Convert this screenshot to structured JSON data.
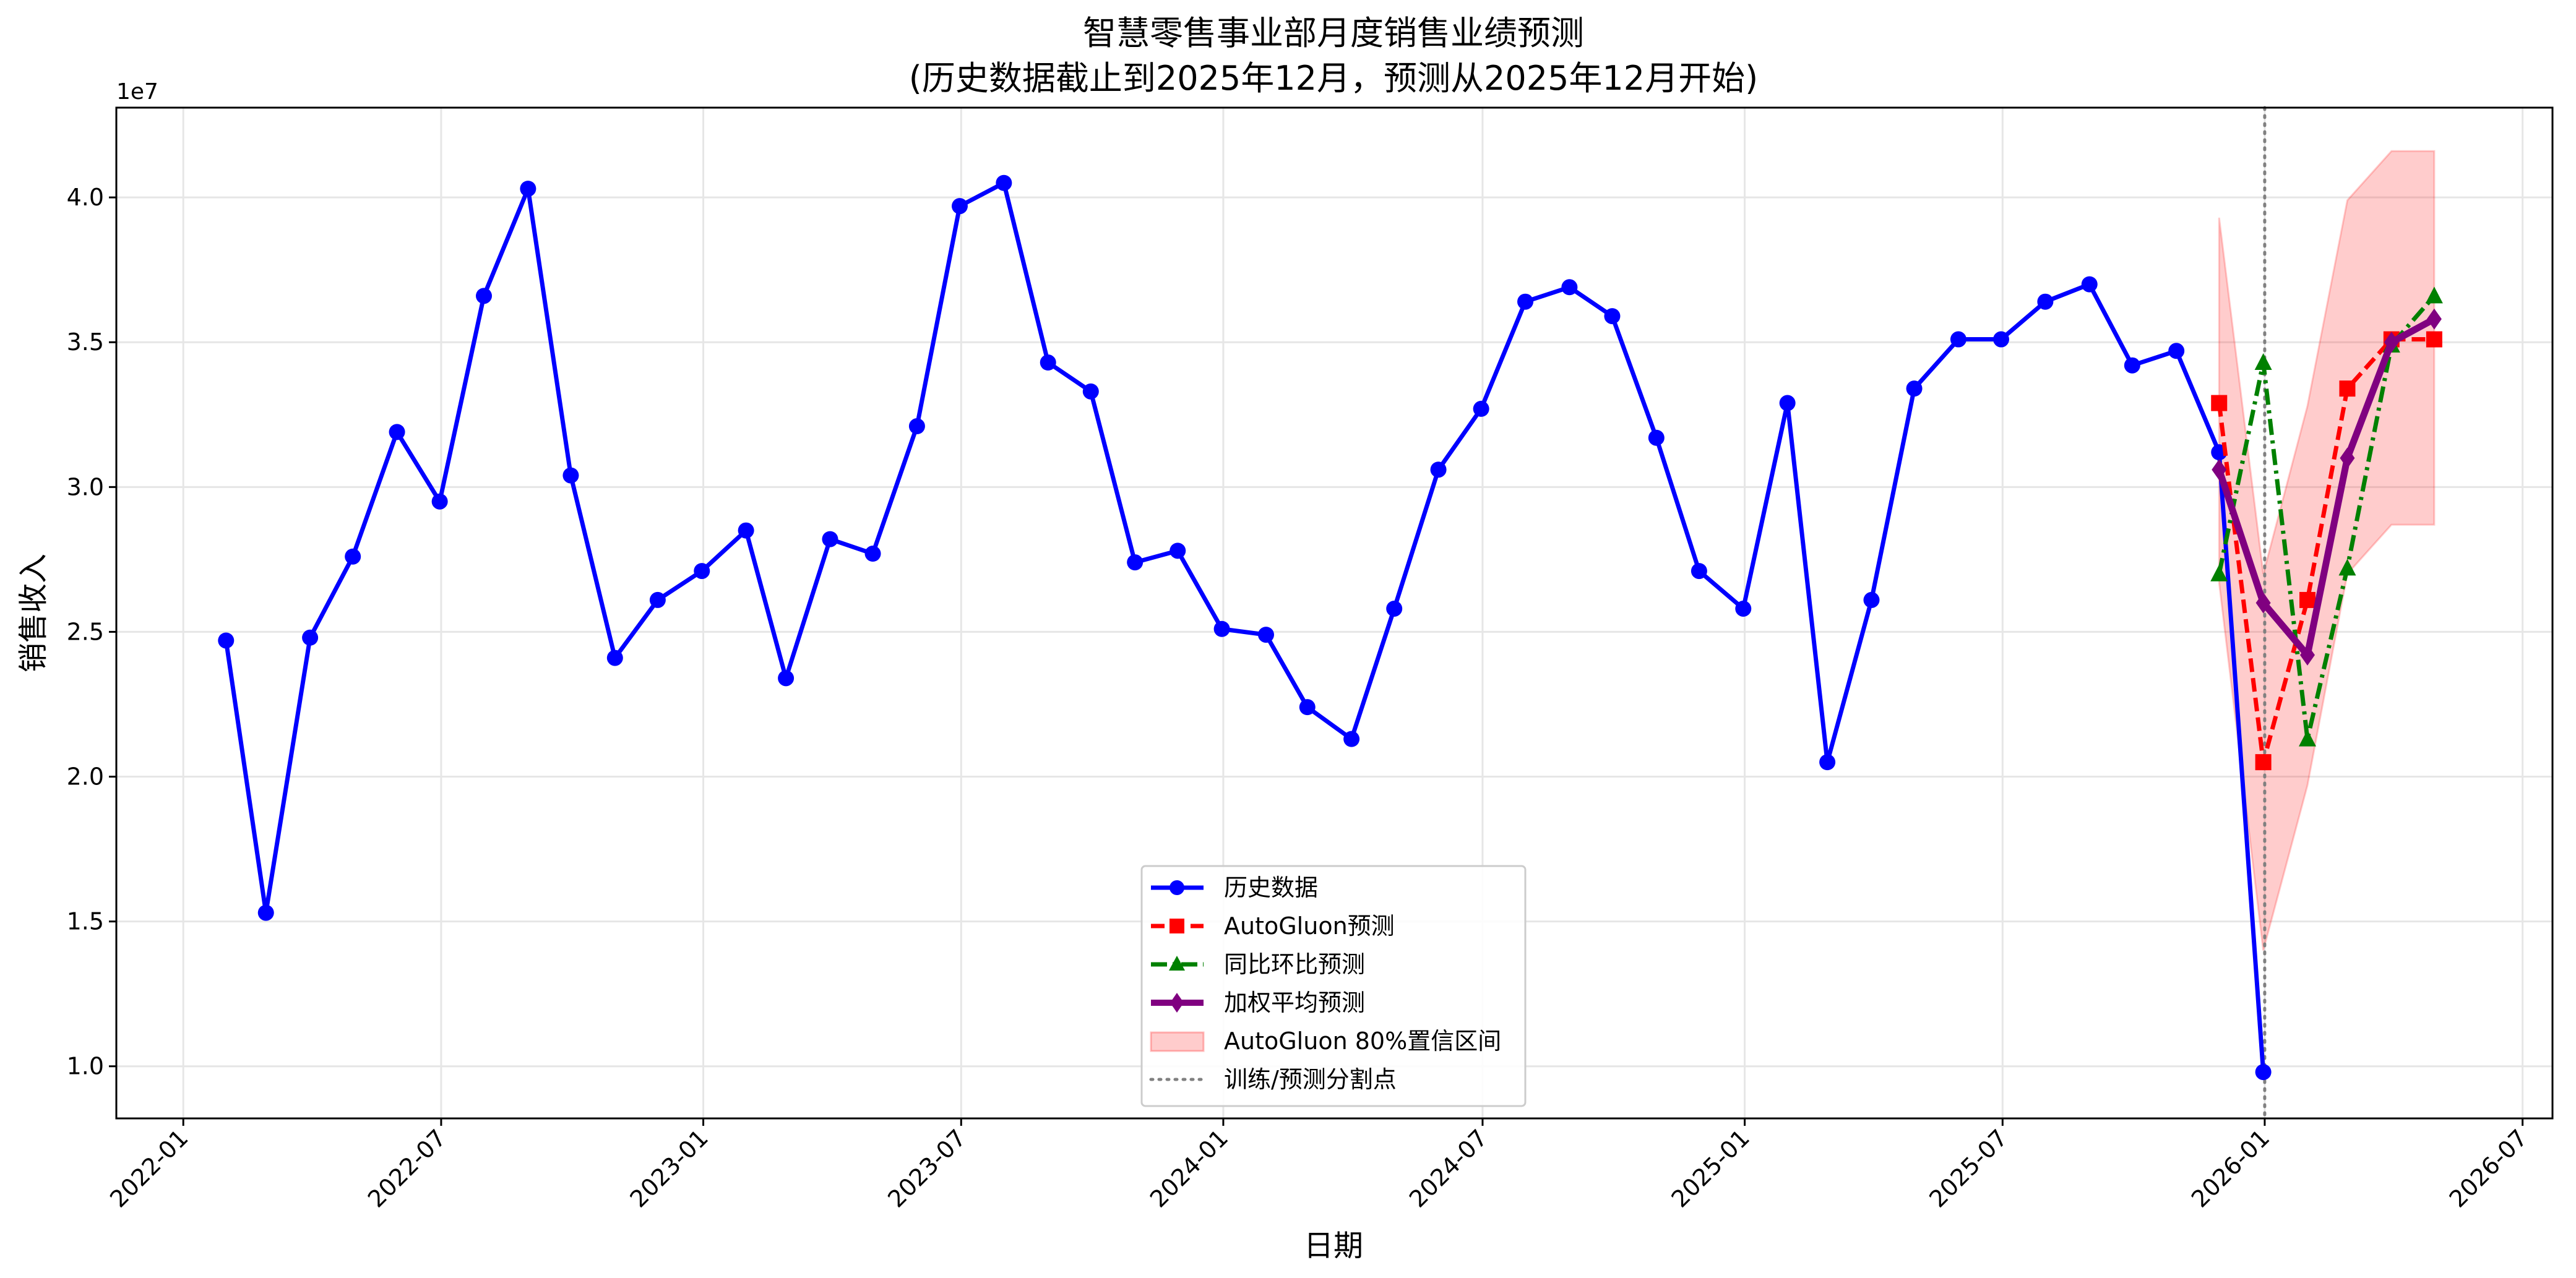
{
  "chart_data": {
    "type": "line",
    "title_line1": "智慧零售事业部月度销售业绩预测",
    "title_line2": "(历史数据截止到2025年12月，预测从2025年12月开始)",
    "xlabel": "日期",
    "ylabel": "销售收入",
    "y_multiplier_label": "1e7",
    "xlim": [
      "2021-11-15",
      "2026-07-22"
    ],
    "ylim": [
      0.82,
      4.31
    ],
    "y_ticks": [
      1.0,
      1.5,
      2.0,
      2.5,
      3.0,
      3.5,
      4.0
    ],
    "y_tick_labels": [
      "1.0",
      "1.5",
      "2.0",
      "2.5",
      "3.0",
      "3.5",
      "4.0"
    ],
    "x_ticks": [
      "2022-01-01",
      "2022-07-01",
      "2023-01-01",
      "2023-07-01",
      "2024-01-01",
      "2024-07-01",
      "2025-01-01",
      "2025-07-01",
      "2026-01-01",
      "2026-07-01"
    ],
    "x_tick_labels": [
      "2022-01",
      "2022-07",
      "2023-01",
      "2023-07",
      "2024-01",
      "2024-07",
      "2025-01",
      "2025-07",
      "2026-01",
      "2026-07"
    ],
    "grid": true,
    "legend_position": "bottom-center",
    "split_date": "2026-01-01",
    "series": [
      {
        "name": "历史数据",
        "color": "#0000ff",
        "style": "solid",
        "marker": "circle",
        "x": [
          "2022-01-31",
          "2022-02-28",
          "2022-03-31",
          "2022-04-30",
          "2022-05-31",
          "2022-06-30",
          "2022-07-31",
          "2022-08-31",
          "2022-09-30",
          "2022-10-31",
          "2022-11-30",
          "2022-12-31",
          "2023-01-31",
          "2023-02-28",
          "2023-03-31",
          "2023-04-30",
          "2023-05-31",
          "2023-06-30",
          "2023-07-31",
          "2023-08-31",
          "2023-09-30",
          "2023-10-31",
          "2023-11-30",
          "2023-12-31",
          "2024-01-31",
          "2024-02-29",
          "2024-03-31",
          "2024-04-30",
          "2024-05-31",
          "2024-06-30",
          "2024-07-31",
          "2024-08-31",
          "2024-09-30",
          "2024-10-31",
          "2024-11-30",
          "2024-12-31",
          "2025-01-31",
          "2025-02-28",
          "2025-03-31",
          "2025-04-30",
          "2025-05-31",
          "2025-06-30",
          "2025-07-31",
          "2025-08-31",
          "2025-09-30",
          "2025-10-31",
          "2025-11-30",
          "2025-12-31"
        ],
        "values": [
          2.47,
          1.53,
          2.48,
          2.76,
          3.19,
          2.95,
          3.66,
          4.03,
          3.04,
          2.41,
          2.61,
          2.71,
          2.85,
          2.34,
          2.82,
          2.77,
          3.21,
          3.97,
          4.05,
          3.43,
          3.33,
          2.74,
          2.78,
          2.51,
          2.49,
          2.24,
          2.13,
          2.58,
          3.06,
          3.27,
          3.64,
          3.69,
          3.59,
          3.17,
          2.71,
          2.58,
          3.29,
          2.05,
          2.61,
          3.34,
          3.51,
          3.51,
          3.64,
          3.7,
          3.42,
          3.47,
          3.12,
          0.98
        ]
      },
      {
        "name": "AutoGluon预测",
        "color": "#ff0000",
        "style": "dashed",
        "marker": "square",
        "x": [
          "2025-11-30",
          "2025-12-31",
          "2026-01-31",
          "2026-02-28",
          "2026-03-31",
          "2026-04-30"
        ],
        "values": [
          3.29,
          2.05,
          2.61,
          3.34,
          3.51,
          3.51
        ]
      },
      {
        "name": "同比环比预测",
        "color": "#008000",
        "style": "dashdot",
        "marker": "triangle",
        "x": [
          "2025-11-30",
          "2025-12-31",
          "2026-01-31",
          "2026-02-28",
          "2026-03-31",
          "2026-04-30"
        ],
        "values": [
          2.7,
          3.43,
          2.13,
          2.72,
          3.49,
          3.66
        ]
      },
      {
        "name": "加权平均预测",
        "color": "#800080",
        "style": "solid",
        "marker": "diamond",
        "x": [
          "2025-11-30",
          "2025-12-31",
          "2026-01-31",
          "2026-02-28",
          "2026-03-31",
          "2026-04-30"
        ],
        "values": [
          3.06,
          2.6,
          2.42,
          3.1,
          3.5,
          3.58
        ]
      }
    ],
    "confidence_band": {
      "name": "AutoGluon 80%置信区间",
      "color": "#ff0000",
      "x": [
        "2025-11-30",
        "2025-12-31",
        "2026-01-31",
        "2026-02-28",
        "2026-03-31",
        "2026-04-30"
      ],
      "lower": [
        2.67,
        1.4,
        1.97,
        2.7,
        2.87,
        2.87
      ],
      "upper": [
        3.93,
        2.7,
        3.28,
        3.99,
        4.16,
        4.16
      ]
    },
    "split_line": {
      "name": "训练/预测分割点",
      "color": "#808080",
      "style": "dotted"
    }
  }
}
